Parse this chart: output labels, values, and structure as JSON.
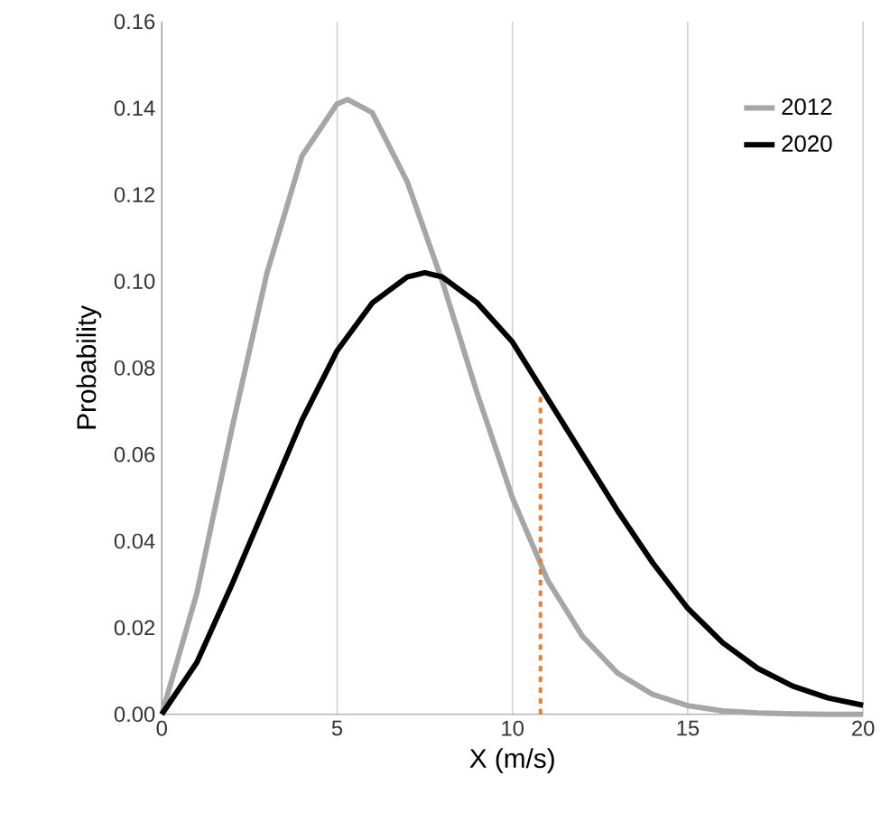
{
  "chart_data": {
    "type": "line",
    "xlabel": "X (m/s)",
    "ylabel": "Probability",
    "xlim": [
      0,
      20
    ],
    "ylim": [
      0,
      0.16
    ],
    "xticks": [
      0,
      5,
      10,
      15,
      20
    ],
    "yticks": [
      {
        "value": 0,
        "label": "0.00"
      },
      {
        "value": 0.02,
        "label": "0.02"
      },
      {
        "value": 0.04,
        "label": "0.04"
      },
      {
        "value": 0.06,
        "label": "0.06"
      },
      {
        "value": 0.08,
        "label": "0.08"
      },
      {
        "value": 0.1,
        "label": "0.10"
      },
      {
        "value": 0.12,
        "label": "0.12"
      },
      {
        "value": 0.14,
        "label": "0.14"
      },
      {
        "value": 0.16,
        "label": "0.16"
      }
    ],
    "grid": "x",
    "legend": "top right",
    "marker": "none",
    "series": [
      {
        "name": "2012",
        "color": "#a6a6a6",
        "line_style": "solid",
        "x": [
          0,
          1,
          2,
          3,
          4,
          5,
          5.3,
          6,
          7,
          8,
          9,
          10,
          11,
          12,
          13,
          14,
          15,
          16,
          17,
          18,
          19,
          20
        ],
        "values": [
          0,
          0.028,
          0.066,
          0.102,
          0.129,
          0.141,
          0.142,
          0.139,
          0.123,
          0.1,
          0.074,
          0.05,
          0.031,
          0.018,
          0.0095,
          0.0046,
          0.002,
          0.0008,
          0.0003,
          0.0001,
          0,
          0
        ]
      },
      {
        "name": "2020",
        "color": "#000000",
        "line_style": "solid",
        "x": [
          0,
          1,
          2,
          3,
          4,
          5,
          6,
          7,
          7.5,
          8,
          9,
          10,
          11,
          12,
          13,
          14,
          15,
          16,
          17,
          18,
          19,
          20
        ],
        "values": [
          0,
          0.012,
          0.03,
          0.049,
          0.068,
          0.084,
          0.095,
          0.101,
          0.102,
          0.101,
          0.095,
          0.086,
          0.073,
          0.06,
          0.047,
          0.035,
          0.0245,
          0.0165,
          0.0106,
          0.0065,
          0.0038,
          0.0021
        ]
      },
      {
        "color": "#ed7d31",
        "line_style": "dashed",
        "x": [
          10.8,
          10.8
        ],
        "values": [
          0,
          0.074
        ]
      }
    ]
  }
}
